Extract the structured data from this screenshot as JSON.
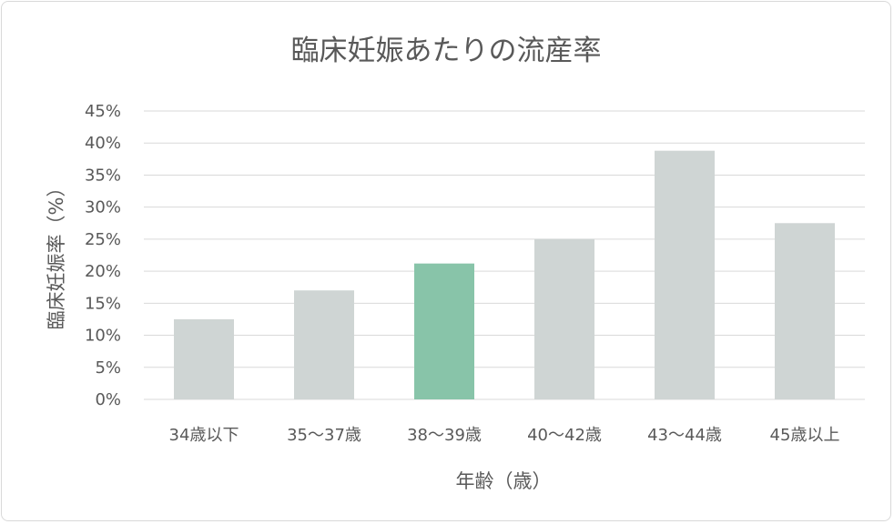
{
  "chart_data": {
    "type": "bar",
    "title": "臨床妊娠あたりの流産率",
    "xlabel": "年齢（歳）",
    "ylabel": "臨床妊娠率（%）",
    "categories": [
      "34歳以下",
      "35〜37歳",
      "38〜39歳",
      "40〜42歳",
      "43〜44歳",
      "45歳以上"
    ],
    "values": [
      12.5,
      17.0,
      21.2,
      25.0,
      38.8,
      27.5
    ],
    "highlight_index": 2,
    "ylim": [
      0,
      45
    ],
    "yticks": [
      0,
      5,
      10,
      15,
      20,
      25,
      30,
      35,
      40,
      45
    ],
    "ytick_labels": [
      "0%",
      "5%",
      "10%",
      "15%",
      "20%",
      "25%",
      "30%",
      "35%",
      "40%",
      "45%"
    ],
    "grid": true,
    "legend": "none",
    "colors": {
      "bar": "#cfd5d4",
      "highlight": "#88c4a9",
      "grid": "#d9d9d9",
      "text": "#595959"
    }
  }
}
